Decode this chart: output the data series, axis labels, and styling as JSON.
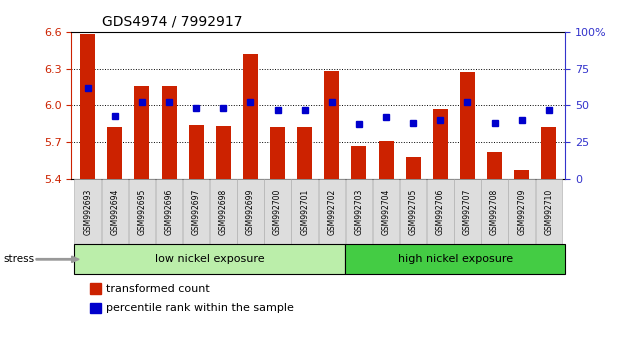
{
  "title": "GDS4974 / 7992917",
  "samples": [
    "GSM992693",
    "GSM992694",
    "GSM992695",
    "GSM992696",
    "GSM992697",
    "GSM992698",
    "GSM992699",
    "GSM992700",
    "GSM992701",
    "GSM992702",
    "GSM992703",
    "GSM992704",
    "GSM992705",
    "GSM992706",
    "GSM992707",
    "GSM992708",
    "GSM992709",
    "GSM992710"
  ],
  "bar_values": [
    6.58,
    5.82,
    6.16,
    6.16,
    5.84,
    5.83,
    6.42,
    5.82,
    5.82,
    6.28,
    5.67,
    5.71,
    5.58,
    5.97,
    6.27,
    5.62,
    5.47,
    5.82
  ],
  "dot_values": [
    62,
    43,
    52,
    52,
    48,
    48,
    52,
    47,
    47,
    52,
    37,
    42,
    38,
    40,
    52,
    38,
    40,
    47
  ],
  "ylim_left": [
    5.4,
    6.6
  ],
  "ylim_right": [
    0,
    100
  ],
  "yticks_left": [
    5.4,
    5.7,
    6.0,
    6.3,
    6.6
  ],
  "yticks_right": [
    0,
    25,
    50,
    75,
    100
  ],
  "bar_color": "#cc2200",
  "dot_color": "#0000cc",
  "background_color": "#ffffff",
  "plot_bg_color": "#ffffff",
  "low_group_label": "low nickel exposure",
  "high_group_label": "high nickel exposure",
  "low_group_color": "#bbeeaa",
  "high_group_color": "#44cc44",
  "stress_label": "stress",
  "legend_bar_label": "transformed count",
  "legend_dot_label": "percentile rank within the sample",
  "axis_color_left": "#cc2200",
  "axis_color_right": "#3333cc",
  "xtick_bg_color": "#dddddd",
  "xtick_border_color": "#aaaaaa"
}
